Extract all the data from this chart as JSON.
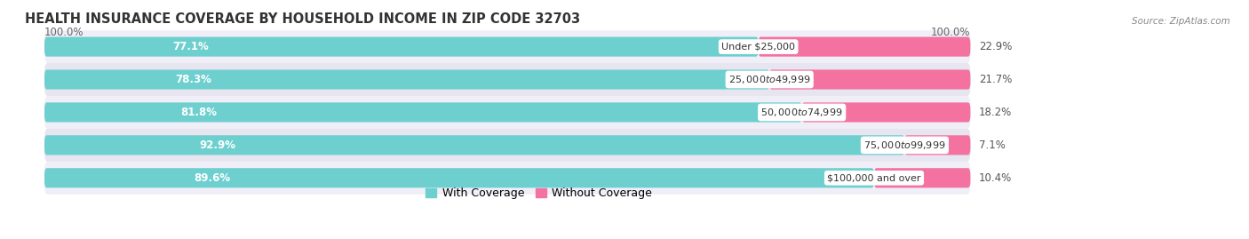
{
  "title": "HEALTH INSURANCE COVERAGE BY HOUSEHOLD INCOME IN ZIP CODE 32703",
  "source": "Source: ZipAtlas.com",
  "categories": [
    "Under $25,000",
    "$25,000 to $49,999",
    "$50,000 to $74,999",
    "$75,000 to $99,999",
    "$100,000 and over"
  ],
  "with_coverage": [
    77.1,
    78.3,
    81.8,
    92.9,
    89.6
  ],
  "without_coverage": [
    22.9,
    21.7,
    18.2,
    7.1,
    10.4
  ],
  "color_with": "#6ECFCF",
  "color_without": "#F472A0",
  "bar_bg_light": "#F0EFF8",
  "bar_bg_dark": "#E6E5F0",
  "fig_bg": "#FFFFFF",
  "title_fontsize": 10.5,
  "label_fontsize": 8.5,
  "tick_fontsize": 8.5,
  "legend_fontsize": 9
}
